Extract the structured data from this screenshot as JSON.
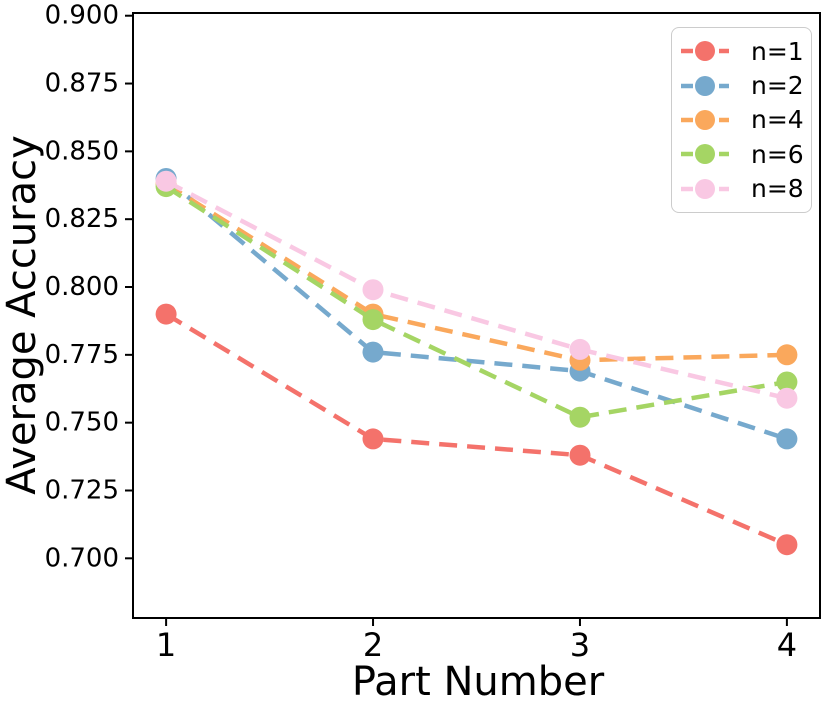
{
  "figure": {
    "xlabel": "Part Number",
    "ylabel": "Average Accuracy",
    "background_color": "#ffffff",
    "axis_color": "#000000",
    "legend_frame_color": "#cccccc"
  },
  "chart_data": {
    "type": "line",
    "line_style": "dashed",
    "marker": "circle",
    "grid": false,
    "legend_position": "upper right",
    "title": "",
    "xlabel": "Part Number",
    "ylabel": "Average Accuracy",
    "x": [
      1,
      2,
      3,
      4
    ],
    "x_tick_labels": [
      "1",
      "2",
      "3",
      "4"
    ],
    "xlim": [
      0.84,
      4.16
    ],
    "y_tick_values": [
      0.7,
      0.725,
      0.75,
      0.775,
      0.8,
      0.825,
      0.85,
      0.875,
      0.9
    ],
    "y_tick_labels": [
      "0.700",
      "0.725",
      "0.750",
      "0.775",
      "0.800",
      "0.825",
      "0.850",
      "0.875",
      "0.900"
    ],
    "ylim": [
      0.678,
      0.901
    ],
    "series": [
      {
        "name": "n=1",
        "color": "#f4726b",
        "values": [
          0.79,
          0.744,
          0.738,
          0.705
        ]
      },
      {
        "name": "n=2",
        "color": "#76a9cd",
        "values": [
          0.84,
          0.776,
          0.769,
          0.744
        ]
      },
      {
        "name": "n=4",
        "color": "#faa85c",
        "values": [
          0.838,
          0.79,
          0.773,
          0.775
        ]
      },
      {
        "name": "n=6",
        "color": "#a5d564",
        "values": [
          0.837,
          0.788,
          0.752,
          0.765
        ]
      },
      {
        "name": "n=8",
        "color": "#f9c8e3",
        "values": [
          0.839,
          0.799,
          0.777,
          0.759
        ]
      }
    ]
  }
}
